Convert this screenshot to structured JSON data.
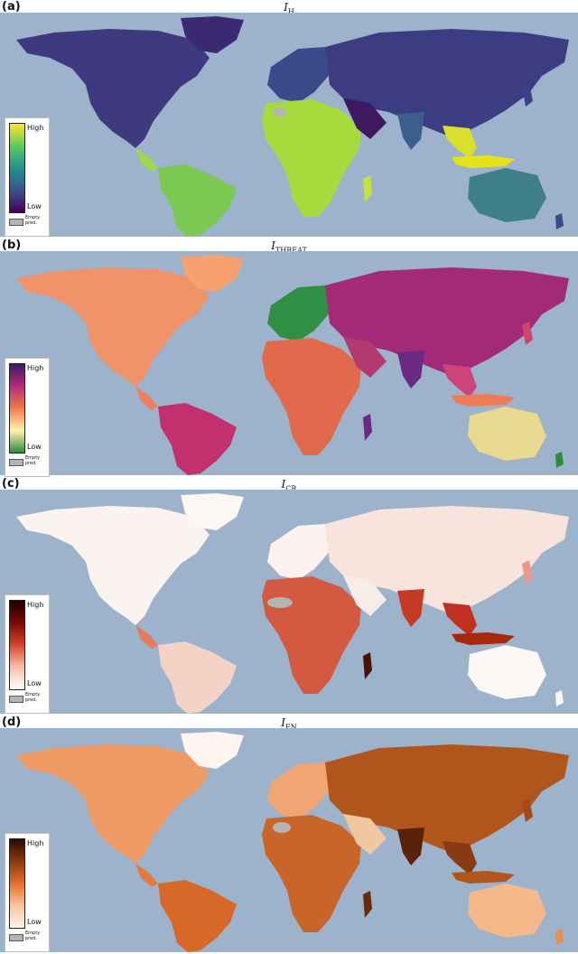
{
  "panels": [
    {
      "label": "(a)",
      "title_main": "I",
      "title_sub": "H",
      "legend": {
        "high": "High",
        "low": "Low",
        "empty": "Empty pred."
      },
      "colormap": [
        "#fde725",
        "#5ec962",
        "#21918c",
        "#3b528b",
        "#440154"
      ],
      "ocean": "#9db3cb"
    },
    {
      "label": "(b)",
      "title_main": "I",
      "title_sub": "THREAT",
      "legend": {
        "high": "High",
        "low": "Low",
        "empty": "Empty pred."
      },
      "colormap": [
        "#3a1a66",
        "#b22d75",
        "#f47a4d",
        "#fff4b0",
        "#2e8b3e"
      ],
      "ocean": "#9db3cb"
    },
    {
      "label": "(c)",
      "title_main": "I",
      "title_sub": "CR",
      "legend": {
        "high": "High",
        "low": "Low",
        "empty": "Empty pred."
      },
      "colormap": [
        "#200000",
        "#7a0a04",
        "#d8452a",
        "#f6c0a8",
        "#ffffff"
      ],
      "ocean": "#9db3cb"
    },
    {
      "label": "(d)",
      "title_main": "I",
      "title_sub": "EN",
      "legend": {
        "high": "High",
        "low": "Low",
        "empty": "Empty pred."
      },
      "colormap": [
        "#2a0d04",
        "#8c3a0e",
        "#e46f2a",
        "#f9c59a",
        "#fff5ee"
      ],
      "ocean": "#9db3cb"
    }
  ]
}
